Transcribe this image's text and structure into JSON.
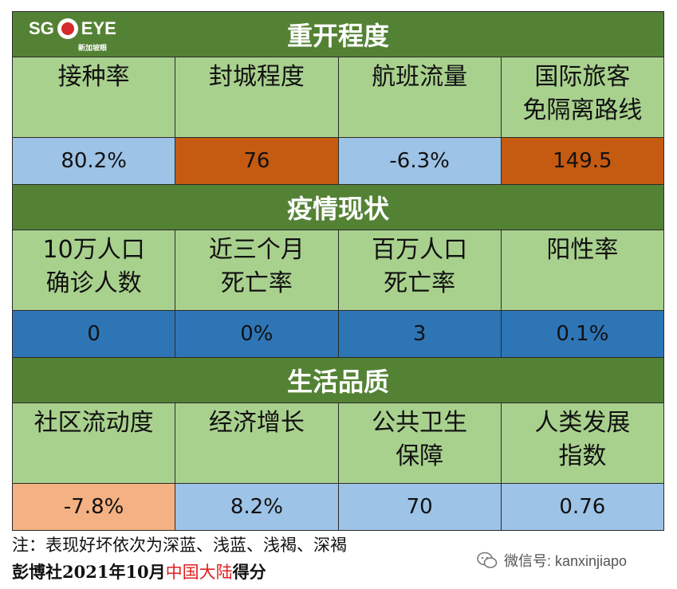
{
  "logo": {
    "text_left": "SG",
    "text_right": "EYE",
    "sub": "新加坡眼"
  },
  "sections": [
    {
      "title": "重开程度",
      "labels": [
        "接种率",
        "封城程度",
        "航班流量",
        "国际旅客\n免隔离路线"
      ],
      "values": [
        "80.2%",
        "76",
        "-6.3%",
        "149.5"
      ],
      "colors": [
        "#9dc3e6",
        "#c55a11",
        "#9dc3e6",
        "#c55a11"
      ]
    },
    {
      "title": "疫情现状",
      "labels": [
        "10万人口\n确诊人数",
        "近三个月\n死亡率",
        "百万人口\n死亡率",
        "阳性率"
      ],
      "values": [
        "0",
        "0%",
        "3",
        "0.1%"
      ],
      "colors": [
        "#2e75b6",
        "#2e75b6",
        "#2e75b6",
        "#2e75b6"
      ]
    },
    {
      "title": "生活品质",
      "labels": [
        "社区流动度",
        "经济增长",
        "公共卫生\n保障",
        "人类发展\n指数"
      ],
      "values": [
        "-7.8%",
        "8.2%",
        "70",
        "0.76"
      ],
      "colors": [
        "#f4b183",
        "#9dc3e6",
        "#9dc3e6",
        "#9dc3e6"
      ]
    }
  ],
  "footer": {
    "note": "注：表现好坏依次为深蓝、浅蓝、浅褐、深褐",
    "source_prefix": "彭博社2021年10月",
    "source_region": "中国大陆",
    "source_suffix": "得分"
  },
  "watermark": {
    "text": "微信号: kanxinjiapo",
    "icon": "wechat-icon"
  }
}
